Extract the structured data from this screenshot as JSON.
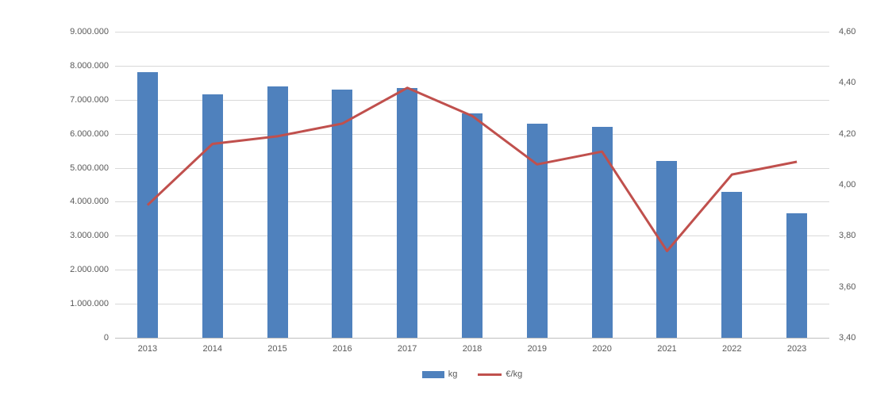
{
  "chart_data": {
    "type": "bar",
    "subtype": "combo-bar-line-dual-axis",
    "title": "",
    "categories": [
      "2013",
      "2014",
      "2015",
      "2016",
      "2017",
      "2018",
      "2019",
      "2020",
      "2021",
      "2022",
      "2023"
    ],
    "series": [
      {
        "name": "kg",
        "render": "bar",
        "axis": "left",
        "color": "#4f81bd",
        "values": [
          7800000,
          7150000,
          7400000,
          7300000,
          7350000,
          6600000,
          6300000,
          6200000,
          5200000,
          4280000,
          3650000
        ]
      },
      {
        "name": "€/kg",
        "render": "line",
        "axis": "right",
        "color": "#c0504d",
        "values": [
          3.92,
          4.16,
          4.19,
          4.24,
          4.38,
          4.27,
          4.08,
          4.13,
          3.74,
          4.04,
          4.09
        ]
      }
    ],
    "left_axis": {
      "min": 0,
      "max": 9000000,
      "step": 1000000,
      "tick_labels": [
        "0",
        "1.000.000",
        "2.000.000",
        "3.000.000",
        "4.000.000",
        "5.000.000",
        "6.000.000",
        "7.000.000",
        "8.000.000",
        "9.000.000"
      ]
    },
    "right_axis": {
      "min": 3.4,
      "max": 4.6,
      "step": 0.2,
      "tick_labels": [
        "3,40",
        "3,60",
        "3,80",
        "4,00",
        "4,20",
        "4,40",
        "4,60"
      ]
    },
    "grid": true,
    "legend": {
      "position": "bottom"
    },
    "colors": {
      "background": "#ffffff",
      "gridline": "#d9d9d9",
      "axis_line": "#bfbfbf",
      "tick_text": "#595959"
    }
  }
}
